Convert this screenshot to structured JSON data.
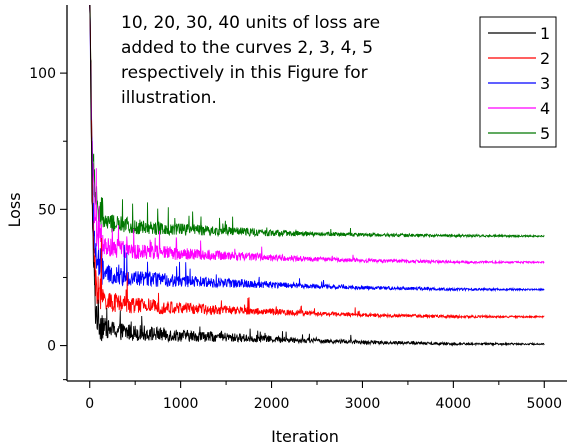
{
  "chart_data": {
    "type": "line",
    "xlabel": "Iteration",
    "ylabel": "Loss",
    "xlim": [
      -250,
      5250
    ],
    "ylim": [
      -13,
      125
    ],
    "xticks": [
      0,
      1000,
      2000,
      3000,
      4000,
      5000
    ],
    "yticks": [
      0,
      50,
      100
    ],
    "annotation_lines": [
      "10, 20, 30, 40 units of loss are",
      "added to the curves 2, 3, 4, 5",
      "respectively in this Figure for",
      "illustration."
    ],
    "legend_position": "top-right",
    "series": [
      {
        "name": "1",
        "color": "#000000",
        "offset": 0,
        "x": [
          0,
          30,
          60,
          100,
          200,
          400,
          700,
          1000,
          1500,
          2000,
          2500,
          3000,
          3500,
          4000,
          4500,
          5000
        ],
        "values": [
          125,
          40,
          12,
          7,
          5,
          4,
          3.5,
          3,
          2.5,
          2,
          1.5,
          1,
          0.8,
          0.5,
          0.5,
          0.5
        ]
      },
      {
        "name": "2",
        "color": "#ff0000",
        "offset": 10,
        "x": [
          0,
          30,
          60,
          100,
          200,
          400,
          700,
          1000,
          1500,
          2000,
          2500,
          3000,
          3500,
          4000,
          4500,
          5000
        ],
        "values": [
          125,
          48,
          22,
          17,
          15,
          14,
          13.5,
          13,
          12.5,
          12,
          11.5,
          11,
          10.8,
          10.5,
          10.5,
          10.5
        ]
      },
      {
        "name": "3",
        "color": "#0000ff",
        "offset": 20,
        "x": [
          0,
          30,
          60,
          100,
          200,
          400,
          700,
          1000,
          1500,
          2000,
          2500,
          3000,
          3500,
          4000,
          4500,
          5000
        ],
        "values": [
          125,
          55,
          32,
          27,
          25,
          24,
          23.5,
          23,
          22.5,
          22,
          21.5,
          21,
          20.8,
          20.5,
          20.5,
          20.5
        ]
      },
      {
        "name": "4",
        "color": "#ff00ff",
        "offset": 30,
        "x": [
          0,
          30,
          60,
          100,
          200,
          400,
          700,
          1000,
          1500,
          2000,
          2500,
          3000,
          3500,
          4000,
          4500,
          5000
        ],
        "values": [
          125,
          62,
          42,
          37,
          35,
          34,
          33.5,
          33,
          32.5,
          32,
          31.5,
          31,
          30.8,
          30.5,
          30.5,
          30.5
        ]
      },
      {
        "name": "5",
        "color": "#007700",
        "offset": 40,
        "x": [
          0,
          30,
          60,
          100,
          200,
          400,
          700,
          1000,
          1500,
          2000,
          2500,
          3000,
          3500,
          4000,
          4500,
          5000
        ],
        "values": [
          125,
          70,
          52,
          46,
          44,
          43,
          42.5,
          42,
          41.5,
          41,
          40.7,
          40.5,
          40.3,
          40.2,
          40.1,
          40.1
        ]
      }
    ]
  }
}
